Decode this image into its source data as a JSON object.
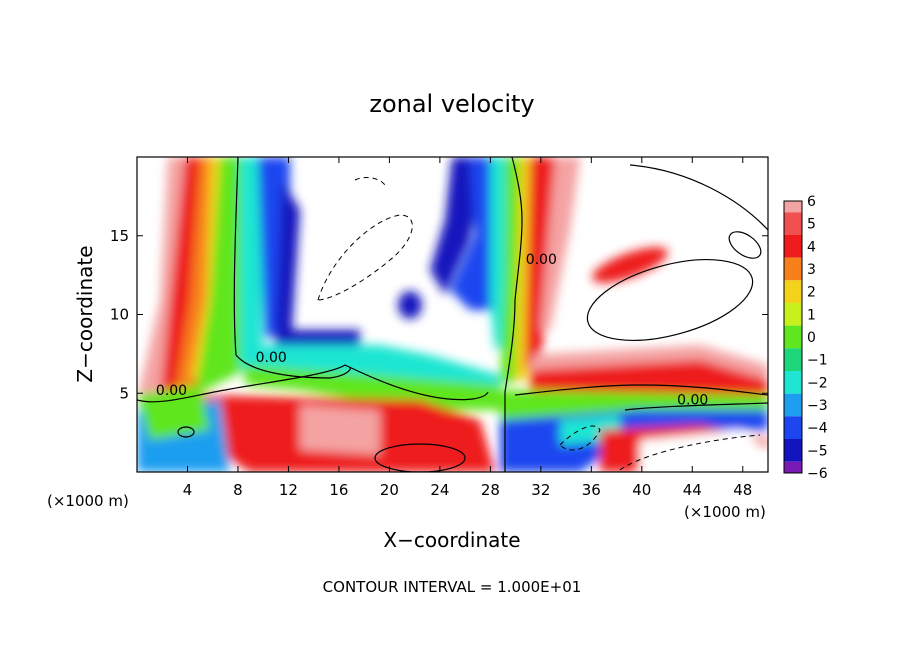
{
  "chart_data": {
    "type": "heatmap",
    "title": "zonal velocity",
    "xlabel": "X−coordinate",
    "ylabel": "Z−coordinate",
    "x_unit_left": "(×1000 m)",
    "x_unit_right": "(×1000 m)",
    "footer": "CONTOUR INTERVAL = 1.000E+01",
    "xlim": [
      0,
      50
    ],
    "ylim": [
      0,
      20
    ],
    "grid": false,
    "legend": "colorbar-right",
    "x_ticks": [
      {
        "value": 4,
        "label": "4"
      },
      {
        "value": 8,
        "label": "8"
      },
      {
        "value": 12,
        "label": "12"
      },
      {
        "value": 16,
        "label": "16"
      },
      {
        "value": 20,
        "label": "20"
      },
      {
        "value": 24,
        "label": "24"
      },
      {
        "value": 28,
        "label": "28"
      },
      {
        "value": 32,
        "label": "32"
      },
      {
        "value": 36,
        "label": "36"
      },
      {
        "value": 40,
        "label": "40"
      },
      {
        "value": 44,
        "label": "44"
      },
      {
        "value": 48,
        "label": "48"
      }
    ],
    "y_ticks": [
      {
        "value": 5,
        "label": "5"
      },
      {
        "value": 10,
        "label": "10"
      },
      {
        "value": 15,
        "label": "15"
      }
    ],
    "colorbar": {
      "min": -6,
      "max": 6,
      "levels": [
        {
          "value": 6,
          "label": "6",
          "color": "#f4a3a3"
        },
        {
          "value": 5,
          "label": "5",
          "color": "#f05050"
        },
        {
          "value": 4,
          "label": "4",
          "color": "#ee1c1c"
        },
        {
          "value": 3,
          "label": "3",
          "color": "#f7801c"
        },
        {
          "value": 2,
          "label": "2",
          "color": "#f4d21c"
        },
        {
          "value": 1,
          "label": "1",
          "color": "#c8f01c"
        },
        {
          "value": 0,
          "label": "0",
          "color": "#5ee61e"
        },
        {
          "value": -1,
          "label": "−1",
          "color": "#1ed67a"
        },
        {
          "value": -2,
          "label": "−2",
          "color": "#1ee6d2"
        },
        {
          "value": -3,
          "label": "−3",
          "color": "#1e9ef0"
        },
        {
          "value": -4,
          "label": "−4",
          "color": "#1e46f0"
        },
        {
          "value": -5,
          "label": "−5",
          "color": "#1414be"
        },
        {
          "value": -6,
          "label": "−6",
          "color": "#7a1ab4"
        }
      ]
    },
    "contour_labels": [
      {
        "text": "0.00",
        "x": 1.5,
        "y": 4.9
      },
      {
        "text": "0.00",
        "x": 9.4,
        "y": 7.0
      },
      {
        "text": "0.00",
        "x": 30.8,
        "y": 13.2
      },
      {
        "text": "0.00",
        "x": 42.8,
        "y": 4.3
      }
    ],
    "features": [
      {
        "name": "left warm column",
        "x_range": [
          1,
          7
        ],
        "z_range": [
          5,
          20
        ],
        "sign": "positive"
      },
      {
        "name": "vertical jet near x=8",
        "x_range": [
          7,
          13
        ],
        "z_range": [
          7,
          20
        ],
        "sign": "negative"
      },
      {
        "name": "lower positive band",
        "x_range": [
          0,
          50
        ],
        "z_range": [
          0,
          6
        ],
        "sign": "mixed"
      },
      {
        "name": "upper jet near x=28",
        "x_range": [
          25,
          32
        ],
        "z_range": [
          5,
          20
        ],
        "sign": "negative"
      },
      {
        "name": "isolated core near x=39",
        "x_range": [
          37,
          41
        ],
        "z_range": [
          12,
          14
        ],
        "sign": "positive"
      }
    ]
  }
}
